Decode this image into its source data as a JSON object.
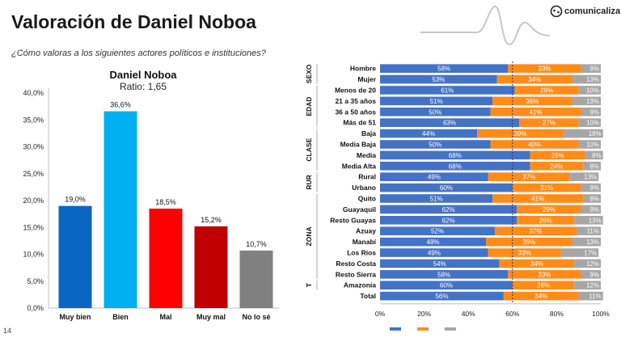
{
  "page": {
    "title": "Valoración de Daniel Noboa",
    "subtitle": "¿Cómo valoras a los siguientes actores políticos e instituciones?",
    "logo_text": "comunicaliza",
    "page_number": "14"
  },
  "chart_data": [
    {
      "type": "bar",
      "title": "Daniel Noboa",
      "subtitle": "Ratio: 1,65",
      "categories": [
        "Muy bien",
        "Bien",
        "Mal",
        "Muy mal",
        "No lo sé"
      ],
      "values": [
        19.0,
        36.6,
        18.5,
        15.2,
        10.7
      ],
      "value_labels": [
        "19,0%",
        "36,6%",
        "18,5%",
        "15,2%",
        "10,7%"
      ],
      "colors": [
        "#0a66c2",
        "#00b0f0",
        "#ff0000",
        "#c00000",
        "#808080"
      ],
      "ylim": [
        0,
        40
      ],
      "yticks": [
        "0,0%",
        "5,0%",
        "10,0%",
        "15,0%",
        "20,0%",
        "25,0%",
        "30,0%",
        "35,0%",
        "40,0%"
      ],
      "grid": false
    },
    {
      "type": "bar",
      "stacked": true,
      "orientation": "horizontal",
      "xlim": [
        0,
        100
      ],
      "xticks": [
        "0%",
        "20%",
        "40%",
        "60%",
        "80%",
        "100%"
      ],
      "reference_line": 60,
      "groups": [
        {
          "name": "SEXO",
          "rows": [
            0,
            1
          ]
        },
        {
          "name": "EDAD",
          "rows": [
            2,
            5
          ]
        },
        {
          "name": "CLASE",
          "rows": [
            6,
            9
          ]
        },
        {
          "name": "RUR",
          "rows": [
            10,
            11
          ]
        },
        {
          "name": "ZONA",
          "rows": [
            12,
            19
          ]
        },
        {
          "name": "T",
          "rows": [
            20,
            20
          ]
        }
      ],
      "categories": [
        "Hombre",
        "Mujer",
        "Menos de 20",
        "21 a 35 años",
        "36 a 50 años",
        "Más de 51",
        "Baja",
        "Media Baja",
        "Media",
        "Media Alta",
        "Rural",
        "Urbano",
        "Quito",
        "Guayaquil",
        "Resto Guayas",
        "Azuay",
        "Manabí",
        "Los Ríos",
        "Resto Costa",
        "Resto Sierra",
        "Amazonía",
        "Total"
      ],
      "series": [
        {
          "color": "#4472c4",
          "values": [
            58,
            53,
            61,
            51,
            50,
            63,
            44,
            50,
            68,
            68,
            49,
            60,
            51,
            62,
            62,
            52,
            48,
            49,
            54,
            58,
            60,
            56
          ]
        },
        {
          "color": "#ff8c1a",
          "values": [
            33,
            34,
            29,
            36,
            41,
            27,
            39,
            40,
            25,
            24,
            37,
            31,
            41,
            29,
            26,
            37,
            39,
            33,
            34,
            33,
            28,
            34
          ]
        },
        {
          "color": "#a6a6a6",
          "values": [
            9,
            13,
            10,
            13,
            9,
            10,
            18,
            10,
            8,
            8,
            13,
            9,
            8,
            9,
            13,
            11,
            13,
            17,
            12,
            9,
            12,
            11
          ]
        }
      ]
    }
  ]
}
